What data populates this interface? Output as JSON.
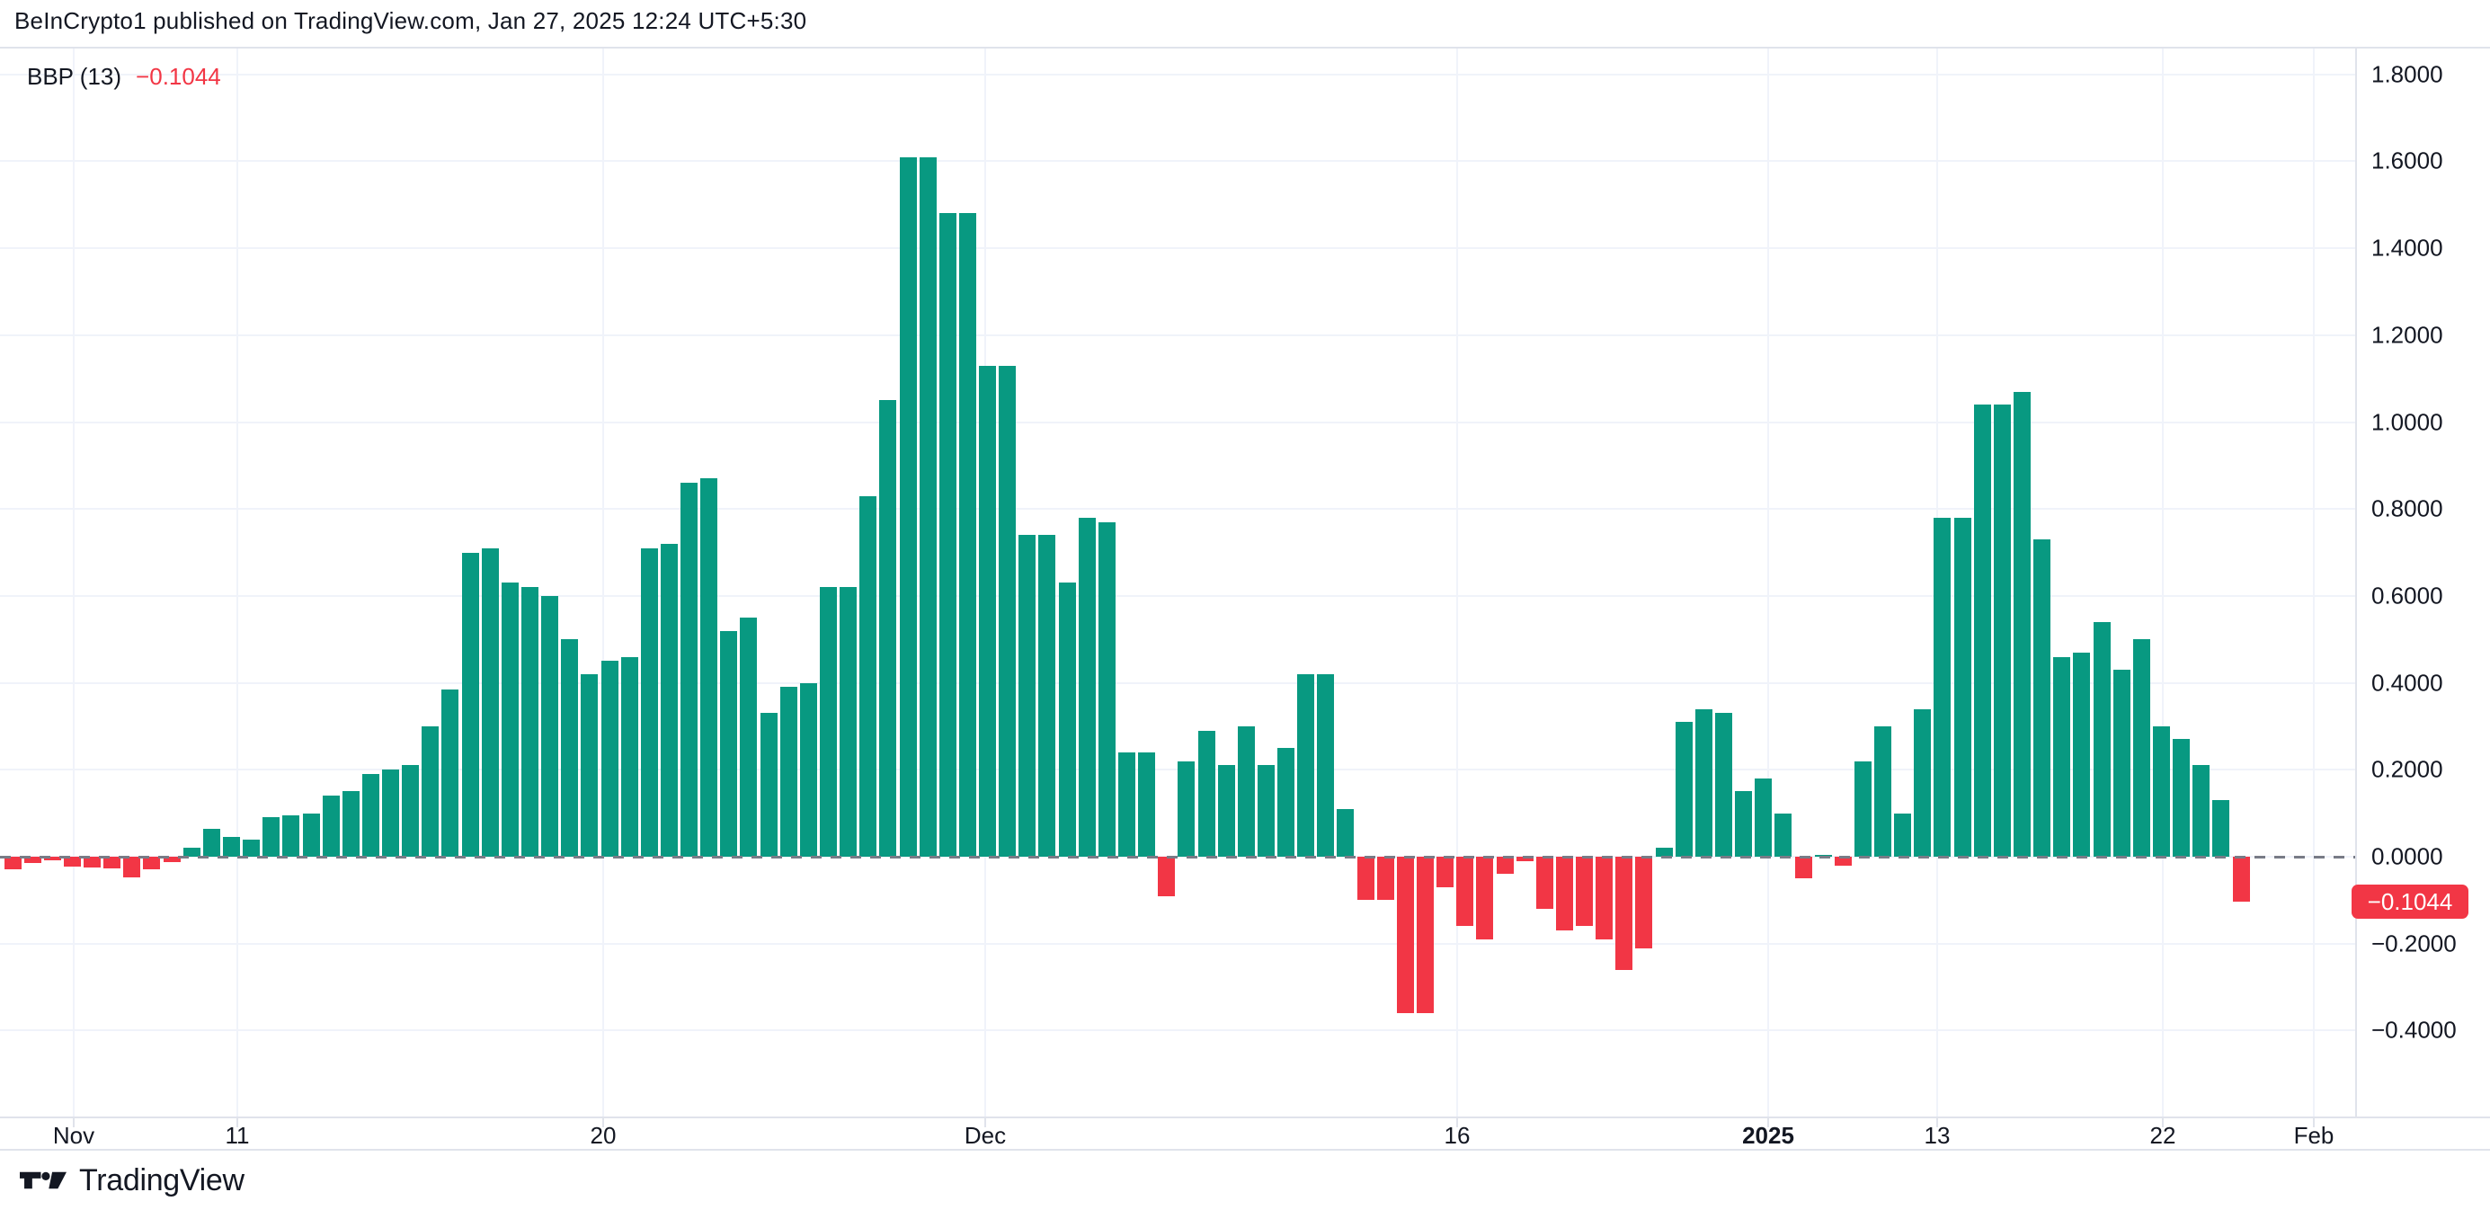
{
  "header": {
    "attribution": "BeInCrypto1 published on TradingView.com, Jan 27, 2025 12:24 UTC+5:30"
  },
  "legend": {
    "indicator": "BBP",
    "period": "(13)",
    "value": "−0.1044"
  },
  "colors": {
    "positive": "#089981",
    "negative": "#f23645",
    "grid": "#f0f3fa",
    "border": "#e0e3eb",
    "zero_line": "#787b86",
    "text": "#131722",
    "badge_bg": "#f23645",
    "badge_text": "#ffffff"
  },
  "chart_data": {
    "type": "bar",
    "title": "BBP (13)",
    "ylabel": "",
    "xlabel": "",
    "ylim": [
      -0.6,
      1.86
    ],
    "grid": true,
    "last_value": -0.1044,
    "values": [
      -0.028,
      -0.014,
      -0.008,
      -0.022,
      -0.024,
      -0.026,
      -0.048,
      -0.028,
      -0.012,
      0.02,
      0.065,
      0.045,
      0.04,
      0.09,
      0.095,
      0.1,
      0.14,
      0.15,
      0.19,
      0.2,
      0.21,
      0.3,
      0.385,
      0.7,
      0.71,
      0.63,
      0.62,
      0.6,
      0.5,
      0.42,
      0.45,
      0.46,
      0.71,
      0.72,
      0.86,
      0.87,
      0.52,
      0.55,
      0.33,
      0.39,
      0.4,
      0.62,
      0.62,
      0.83,
      1.05,
      1.61,
      1.61,
      1.48,
      1.48,
      1.13,
      1.13,
      0.74,
      0.74,
      0.63,
      0.78,
      0.77,
      0.24,
      0.24,
      -0.09,
      0.22,
      0.29,
      0.21,
      0.3,
      0.21,
      0.25,
      0.42,
      0.42,
      0.11,
      -0.1,
      -0.1,
      -0.36,
      -0.36,
      -0.07,
      -0.16,
      -0.19,
      -0.04,
      -0.01,
      -0.12,
      -0.17,
      -0.16,
      -0.19,
      -0.26,
      -0.21,
      0.02,
      0.31,
      0.34,
      0.33,
      0.15,
      0.18,
      0.1,
      -0.05,
      0.005,
      -0.02,
      0.22,
      0.3,
      0.1,
      0.34,
      0.78,
      0.78,
      1.04,
      1.04,
      1.07,
      0.73,
      0.46,
      0.47,
      0.54,
      0.43,
      0.5,
      0.3,
      0.27,
      0.21,
      0.13,
      -0.1044
    ],
    "x_axis": {
      "labels": [
        {
          "label": "Nov",
          "x": 82,
          "bold": false
        },
        {
          "label": "11",
          "x": 264,
          "bold": false
        },
        {
          "label": "20",
          "x": 671,
          "bold": false
        },
        {
          "label": "Dec",
          "x": 1096,
          "bold": false
        },
        {
          "label": "16",
          "x": 1621,
          "bold": false
        },
        {
          "label": "2025",
          "x": 1967,
          "bold": true
        },
        {
          "label": "13",
          "x": 2155,
          "bold": false
        },
        {
          "label": "22",
          "x": 2406,
          "bold": false
        },
        {
          "label": "Feb",
          "x": 2574,
          "bold": false
        }
      ]
    },
    "y_axis": {
      "side": "right",
      "ticks": [
        {
          "label": "1.8000",
          "value": 1.8
        },
        {
          "label": "1.6000",
          "value": 1.6
        },
        {
          "label": "1.4000",
          "value": 1.4
        },
        {
          "label": "1.2000",
          "value": 1.2
        },
        {
          "label": "1.0000",
          "value": 1.0
        },
        {
          "label": "0.8000",
          "value": 0.8
        },
        {
          "label": "0.6000",
          "value": 0.6
        },
        {
          "label": "0.4000",
          "value": 0.4
        },
        {
          "label": "0.2000",
          "value": 0.2
        },
        {
          "label": "0.0000",
          "value": 0.0
        },
        {
          "label": "−0.2000",
          "value": -0.2
        },
        {
          "label": "−0.4000",
          "value": -0.4
        }
      ]
    },
    "zero_line": {
      "value": 0,
      "style": "dashed"
    },
    "badge": {
      "label": "−0.1044",
      "value": -0.1044
    }
  },
  "footer": {
    "brand": "TradingView",
    "logo": "tradingview-logo"
  }
}
